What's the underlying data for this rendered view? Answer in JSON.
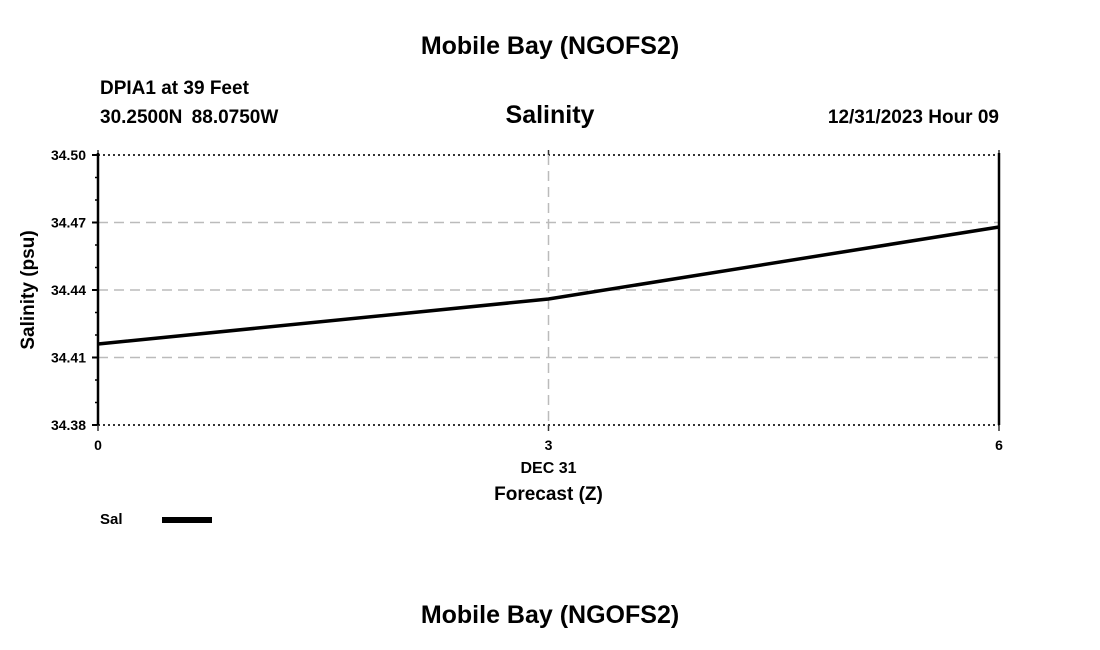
{
  "header": {
    "title": "Mobile Bay (NGOFS2)",
    "station": "DPIA1 at 39 Feet",
    "coords": "30.2500N  88.0750W",
    "plot_title": "Salinity",
    "datetime": "12/31/2023 Hour 09"
  },
  "footer": {
    "title": "Mobile Bay (NGOFS2)"
  },
  "chart_data": {
    "type": "line",
    "title": "Salinity",
    "xlabel": "Forecast (Z)",
    "xlabel_date": "DEC 31",
    "ylabel": "Salinity (psu)",
    "xlim": [
      0,
      6
    ],
    "ylim": [
      34.38,
      34.5
    ],
    "x_ticks": [
      0,
      3,
      6
    ],
    "x_tick_labels": [
      "0",
      "3",
      "6"
    ],
    "y_ticks": [
      34.38,
      34.41,
      34.44,
      34.47,
      34.5
    ],
    "y_tick_labels": [
      "34.38",
      "34.41",
      "34.44",
      "34.47",
      "34.50"
    ],
    "grid": true,
    "legend_placement": "bottom-left",
    "series": [
      {
        "name": "Sal",
        "color": "#000000",
        "x": [
          0,
          3,
          6
        ],
        "values": [
          34.416,
          34.436,
          34.468
        ]
      }
    ]
  }
}
